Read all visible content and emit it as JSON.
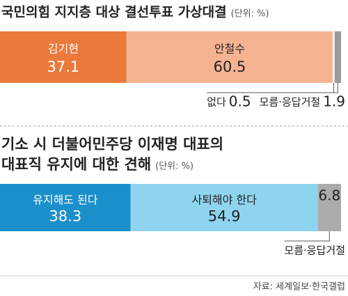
{
  "chart_data": [
    {
      "type": "stacked-bar",
      "title": [
        "국민의힘 지지층 대상 결선투표 가상대결"
      ],
      "unit": "(단위: %)",
      "categories": [
        "김기현",
        "안철수",
        "없다",
        "모름·응답거절"
      ],
      "values": [
        37.1,
        60.5,
        0.5,
        1.9
      ],
      "colors": [
        "#ea7a3c",
        "#f6b392",
        "#ffffff",
        "#9a9a9a"
      ]
    },
    {
      "type": "stacked-bar",
      "title": [
        "기소 시 더불어민주당 이재명 대표의",
        "대표직 유지에 대한 견해"
      ],
      "unit": "(단위: %)",
      "categories": [
        "유지해도 된다",
        "사퇴해야 한다",
        "모름·응답거절"
      ],
      "values": [
        38.3,
        54.9,
        6.8
      ],
      "colors": [
        "#1b8fca",
        "#8fd4ef",
        "#ababab"
      ]
    }
  ],
  "source": "자료: 세계일보·한국갤럽"
}
